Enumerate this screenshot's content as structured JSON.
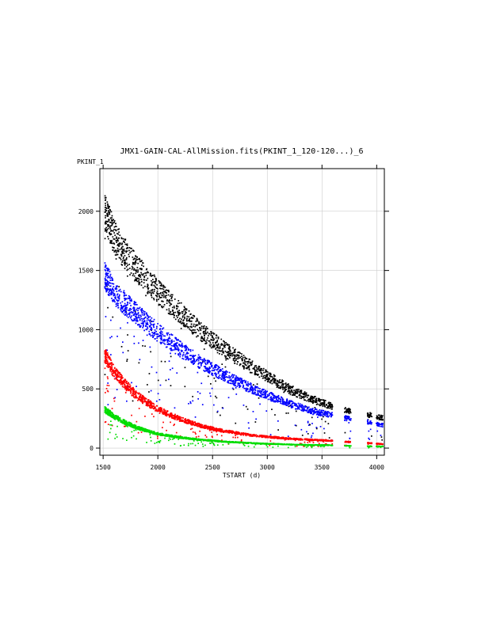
{
  "chart_data": {
    "type": "scatter",
    "title": "JMX1-GAIN-CAL-AllMission.fits(PKINT_1_120-120...)_6",
    "xlabel": "TSTART (d)",
    "ylabel": "PKINT_1",
    "xlim": [
      1470,
      4070
    ],
    "ylim": [
      -60,
      2360
    ],
    "x_ticks": [
      1500,
      2000,
      2500,
      3000,
      3500,
      4000
    ],
    "x_tick_labels": [
      "1500",
      "2000",
      "2500",
      "3000",
      "3500",
      "4000"
    ],
    "y_ticks": [
      0,
      500,
      1000,
      1500,
      2000
    ],
    "y_tick_labels": [
      "0",
      "500",
      "1000",
      "1500",
      "2000"
    ],
    "grid": true,
    "legend": "none",
    "series": [
      {
        "color": "#000000",
        "x": [
          1510,
          1600,
          1700,
          1800,
          1900,
          2000,
          2200,
          2400,
          2600,
          2800,
          3000,
          3200,
          3400,
          3550,
          3700,
          3900,
          4050
        ],
        "y": [
          2000,
          1780,
          1640,
          1520,
          1420,
          1320,
          1150,
          980,
          840,
          720,
          610,
          500,
          420,
          370,
          330,
          290,
          260
        ]
      },
      {
        "color": "#0000ff",
        "x": [
          1510,
          1600,
          1700,
          1800,
          1900,
          2000,
          2200,
          2400,
          2600,
          2800,
          3000,
          3200,
          3400,
          3550,
          3700,
          3900,
          4050
        ],
        "y": [
          1460,
          1320,
          1220,
          1140,
          1060,
          980,
          840,
          720,
          620,
          530,
          450,
          380,
          320,
          290,
          260,
          230,
          200
        ]
      },
      {
        "color": "#ff0000",
        "x": [
          1510,
          1600,
          1700,
          1800,
          1900,
          2000,
          2200,
          2400,
          2600,
          2800,
          3000,
          3200,
          3400,
          3550,
          3700,
          3900,
          4050
        ],
        "y": [
          790,
          640,
          540,
          450,
          390,
          330,
          250,
          190,
          150,
          120,
          100,
          85,
          75,
          70,
          60,
          50,
          40
        ]
      },
      {
        "color": "#00dd00",
        "x": [
          1510,
          1600,
          1700,
          1800,
          1900,
          2000,
          2200,
          2400,
          2600,
          2800,
          3000,
          3200,
          3400,
          3550,
          3700,
          3900,
          4050
        ],
        "y": [
          330,
          270,
          220,
          180,
          150,
          125,
          95,
          75,
          60,
          50,
          42,
          36,
          32,
          30,
          26,
          22,
          20
        ]
      }
    ],
    "data_gaps": [
      [
        3590,
        3700
      ],
      [
        3760,
        3910
      ],
      [
        3950,
        3990
      ]
    ]
  }
}
